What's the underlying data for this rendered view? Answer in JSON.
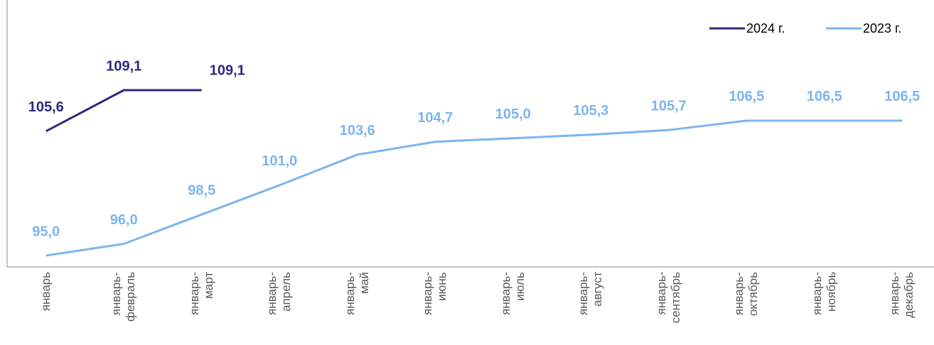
{
  "chart_data": {
    "type": "line",
    "categories": [
      "январь",
      "январь-\nфевраль",
      "январь-\nмарт",
      "январь-\nапрель",
      "январь-\nмай",
      "январь-\nиюнь",
      "январь-\nиюль",
      "январь-\nавгуст",
      "январь-\nсентябрь",
      "январь-\nоктябрь",
      "январь-\nноябрь",
      "январь-\nдекабрь"
    ],
    "series": [
      {
        "name": "2024 г.",
        "color": "#2e2a7e",
        "values": [
          105.6,
          109.1,
          109.1,
          null,
          null,
          null,
          null,
          null,
          null,
          null,
          null,
          null
        ],
        "value_labels": [
          "105,6",
          "109,1",
          "109,1",
          null,
          null,
          null,
          null,
          null,
          null,
          null,
          null,
          null
        ]
      },
      {
        "name": "2023 г.",
        "color": "#7cb5ef",
        "values": [
          95.0,
          96.0,
          98.5,
          101.0,
          103.6,
          104.7,
          105.0,
          105.3,
          105.7,
          106.5,
          106.5,
          106.5
        ],
        "value_labels": [
          "95,0",
          "96,0",
          "98,5",
          "101,0",
          "103,6",
          "104,7",
          "105,0",
          "105,3",
          "105,7",
          "106,5",
          "106,5",
          "106,5"
        ]
      }
    ],
    "legend": "top-right"
  }
}
